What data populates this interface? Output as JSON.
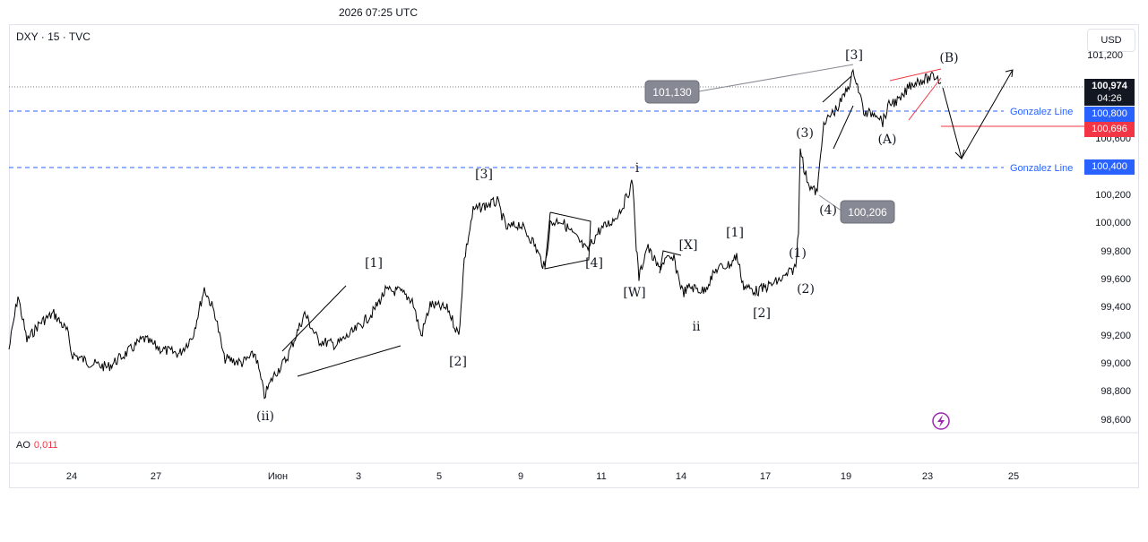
{
  "timestamp": "2026 07:25 UTC",
  "symbol": "DXY · 15 · TVC",
  "currency": "USD",
  "price_axis": [
    "101,200",
    "100,600",
    "100,200",
    "100,000",
    "99,800",
    "99,600",
    "99,400",
    "99,200",
    "99,000",
    "98,800",
    "98,600"
  ],
  "time_axis": [
    "24",
    "27",
    "Июн",
    "3",
    "5",
    "9",
    "11",
    "14",
    "17",
    "19",
    "23",
    "25"
  ],
  "tags": {
    "last_price": "100,974",
    "countdown": "04:26",
    "gonzalez_upper": "100,800",
    "red_level": "100,696",
    "gonzalez_lower": "100,400"
  },
  "gonzalez_label": "Gonzalez Line",
  "callouts": {
    "high": "101,130",
    "low": "100,206"
  },
  "wave_labels": {
    "ii_small": "(ii)",
    "one_a": "[1]",
    "two_a": "[2]",
    "three_a": "[3]",
    "four_a": "[4]",
    "i": "i",
    "w": "[W]",
    "x": "[X]",
    "ii": "ii",
    "one_b": "[1]",
    "two_b": "[2]",
    "p1": "(1)",
    "p2": "(2)",
    "p3": "(3)",
    "p4": "(4)",
    "three_b": "[3]",
    "pa": "(A)",
    "pb": "(B)"
  },
  "indicator": {
    "label": "AO",
    "value": "0,011"
  },
  "colors": {
    "blue": "#2962ff",
    "red": "#f23645",
    "grid_dot": "#787b86",
    "price_bg": "#131722",
    "callout": "#868993",
    "purple": "#9c27b0"
  }
}
